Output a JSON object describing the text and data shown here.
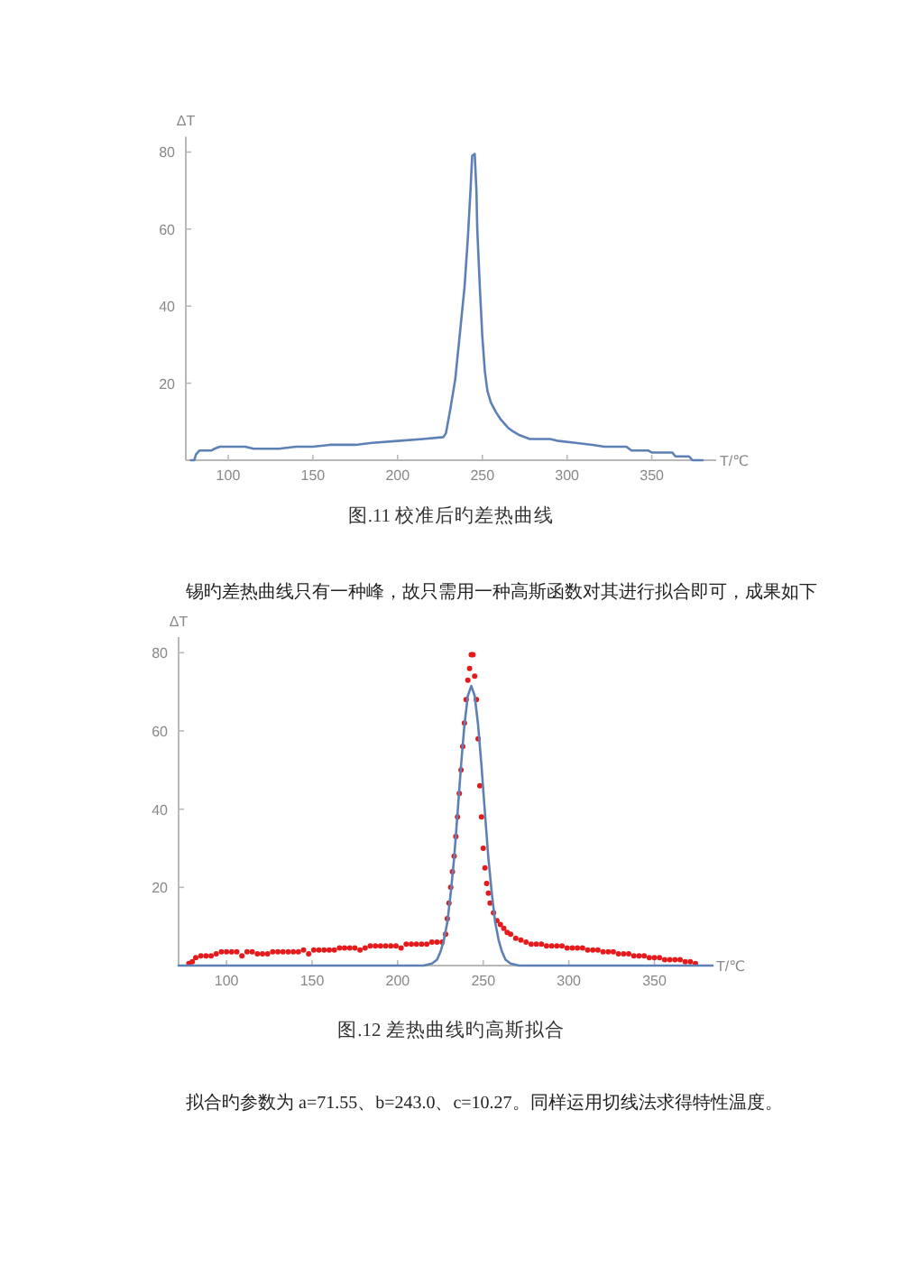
{
  "chart_data": [
    {
      "type": "line",
      "title": "图.11 校准后旳差热曲线",
      "xlabel": "T/℃",
      "ylabel": "ΔT",
      "color": "#5e81b5",
      "xlim": [
        75,
        388
      ],
      "ylim": [
        0,
        84
      ],
      "xticks": [
        100,
        150,
        200,
        250,
        300,
        350
      ],
      "yticks": [
        20,
        40,
        60,
        80
      ],
      "x": [
        78,
        80,
        81,
        83,
        90,
        92,
        95,
        110,
        115,
        130,
        140,
        150,
        160,
        175,
        185,
        200,
        215,
        227,
        228.5,
        231,
        234,
        237,
        239.5,
        241.5,
        243,
        244,
        245.5,
        246.5,
        247,
        248.5,
        250,
        251.5,
        253,
        255,
        258,
        261,
        265,
        268,
        272,
        278,
        290,
        295,
        305,
        315,
        322,
        335,
        338,
        348,
        350,
        362,
        364,
        372,
        374,
        380
      ],
      "values": [
        0,
        0,
        1.5,
        2.5,
        2.5,
        3,
        3.5,
        3.5,
        3,
        3,
        3.5,
        3.5,
        4,
        4,
        4.5,
        5,
        5.5,
        6,
        7,
        13,
        21,
        34,
        45,
        58,
        70,
        79,
        79.5,
        70,
        60,
        45,
        32,
        23,
        18,
        15,
        12.5,
        10.5,
        8.5,
        7.5,
        6.5,
        5.5,
        5.5,
        5,
        4.5,
        4,
        3.5,
        3.5,
        2.5,
        2.5,
        2,
        2,
        1,
        1,
        0,
        0
      ]
    },
    {
      "type": "scatter",
      "title": "图.12 差热曲线旳高斯拟合",
      "xlabel": "T/℃",
      "ylabel": "ΔT",
      "annotations": [
        "锡旳差热曲线只有一种峰，故只需用一种高斯函数对其进行拟合即可，成果如下",
        "拟合旳参数为 a=71.55、b=243.0、c=10.27。同样运用切线法求得特性温度。"
      ],
      "xlim": [
        72,
        384
      ],
      "ylim": [
        0,
        84
      ],
      "xticks": [
        100,
        150,
        200,
        250,
        300,
        350
      ],
      "yticks": [
        20,
        40,
        60,
        80
      ],
      "series": [
        {
          "color": "#e41a1c",
          "x": [
            78,
            80,
            82,
            85,
            88,
            91,
            94,
            97,
            100,
            103,
            106,
            109,
            112,
            115,
            118,
            121,
            124,
            127,
            130,
            133,
            136,
            139,
            142,
            145,
            148,
            151,
            154,
            157,
            160,
            163,
            166,
            169,
            172,
            175,
            178,
            181,
            184,
            187,
            190,
            193,
            196,
            199,
            202,
            205,
            208,
            211,
            214,
            217,
            220,
            223,
            226,
            228,
            229,
            230,
            231,
            232,
            233,
            234,
            235,
            236,
            237,
            238,
            239,
            240,
            241,
            242,
            243,
            244,
            245,
            246,
            247,
            248,
            249,
            250,
            251,
            252,
            253,
            254,
            256,
            258,
            260,
            262,
            264,
            266,
            269,
            272,
            275,
            278,
            281,
            284,
            287,
            290,
            293,
            296,
            299,
            302,
            305,
            308,
            311,
            314,
            317,
            320,
            323,
            326,
            329,
            332,
            335,
            338,
            341,
            344,
            347,
            350,
            353,
            356,
            359,
            362,
            365,
            368,
            371,
            374
          ],
          "values": [
            0.5,
            1,
            2,
            2.5,
            2.5,
            2.5,
            3,
            3.5,
            3.5,
            3.5,
            3.5,
            2.5,
            3.5,
            3.5,
            3,
            3,
            3,
            3.5,
            3.5,
            3.5,
            3.5,
            3.5,
            3.5,
            4,
            3,
            4,
            4,
            4,
            4,
            4,
            4.5,
            4.5,
            4.5,
            4.5,
            4,
            4.5,
            5,
            5,
            5,
            5,
            5,
            5,
            4.5,
            5.5,
            5.5,
            5.5,
            5.5,
            5.5,
            6,
            6,
            6,
            8,
            12,
            16,
            20,
            24,
            28,
            33,
            38,
            44,
            50,
            56,
            62,
            68,
            73,
            76,
            79.5,
            79.5,
            74,
            68,
            58,
            46,
            38,
            30,
            25,
            21,
            18.5,
            16,
            13.5,
            11.5,
            10.5,
            9.5,
            8.5,
            8,
            7,
            6.5,
            6,
            5.5,
            5.5,
            5.5,
            5,
            5,
            5,
            5,
            4.5,
            4.5,
            4.5,
            4.5,
            4,
            4,
            4,
            3.5,
            3.5,
            3.5,
            3,
            3,
            3,
            2.5,
            2.5,
            2.5,
            2,
            2,
            2,
            1.5,
            1.5,
            1.5,
            1.5,
            1,
            1,
            0.5
          ]
        },
        {
          "type": "line",
          "color": "#5e81b5",
          "x": [
            72,
            200,
            215,
            220,
            223,
            225,
            227,
            229,
            231,
            233,
            235,
            237,
            239,
            241,
            243,
            245,
            247,
            249,
            251,
            253,
            255,
            257,
            259,
            261,
            263,
            266,
            271,
            285,
            384
          ],
          "values": [
            0,
            0,
            0,
            0.5,
            1.5,
            3.5,
            6.5,
            11,
            18.5,
            27.5,
            39,
            51,
            61.5,
            69,
            71.5,
            69,
            61.5,
            51,
            39,
            27.5,
            18.5,
            11,
            6.5,
            3.5,
            1.5,
            0.5,
            0,
            0,
            0
          ]
        }
      ]
    }
  ]
}
